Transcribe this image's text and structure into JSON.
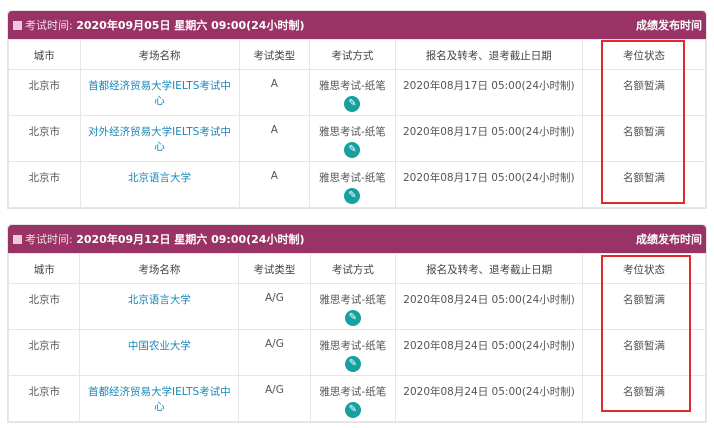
{
  "columns": [
    "城市",
    "考场名称",
    "考试类型",
    "考试方式",
    "报名及转考、退考截止日期",
    "考位状态"
  ],
  "sessions": [
    {
      "label": "考试时间:",
      "date": "2020年09月05日 星期六 09:00(24小时制)",
      "right": "成绩发布时间",
      "rows": [
        {
          "city": "北京市",
          "venue": "首都经济贸易大学IELTS考试中心",
          "type": "A",
          "method": "雅思考试-纸笔",
          "deadline": "2020年08月17日 05:00(24小时制)",
          "status": "名额暂满"
        },
        {
          "city": "北京市",
          "venue": "对外经济贸易大学IELTS考试中心",
          "type": "A",
          "method": "雅思考试-纸笔",
          "deadline": "2020年08月17日 05:00(24小时制)",
          "status": "名额暂满"
        },
        {
          "city": "北京市",
          "venue": "北京语言大学",
          "type": "A",
          "method": "雅思考试-纸笔",
          "deadline": "2020年08月17日 05:00(24小时制)",
          "status": "名额暂满"
        }
      ]
    },
    {
      "label": "考试时间:",
      "date": "2020年09月12日 星期六 09:00(24小时制)",
      "right": "成绩发布时间",
      "rows": [
        {
          "city": "北京市",
          "venue": "北京语言大学",
          "type": "A/G",
          "method": "雅思考试-纸笔",
          "deadline": "2020年08月24日 05:00(24小时制)",
          "status": "名额暂满"
        },
        {
          "city": "北京市",
          "venue": "中国农业大学",
          "type": "A/G",
          "method": "雅思考试-纸笔",
          "deadline": "2020年08月24日 05:00(24小时制)",
          "status": "名额暂满"
        },
        {
          "city": "北京市",
          "venue": "首都经济贸易大学IELTS考试中心",
          "type": "A/G",
          "method": "雅思考试-纸笔",
          "deadline": "2020年08月24日 05:00(24小时制)",
          "status": "名额暂满"
        }
      ]
    }
  ],
  "colors": {
    "header": "#993366",
    "highlight": "#e02a2a",
    "icon": "#16a0a0"
  }
}
